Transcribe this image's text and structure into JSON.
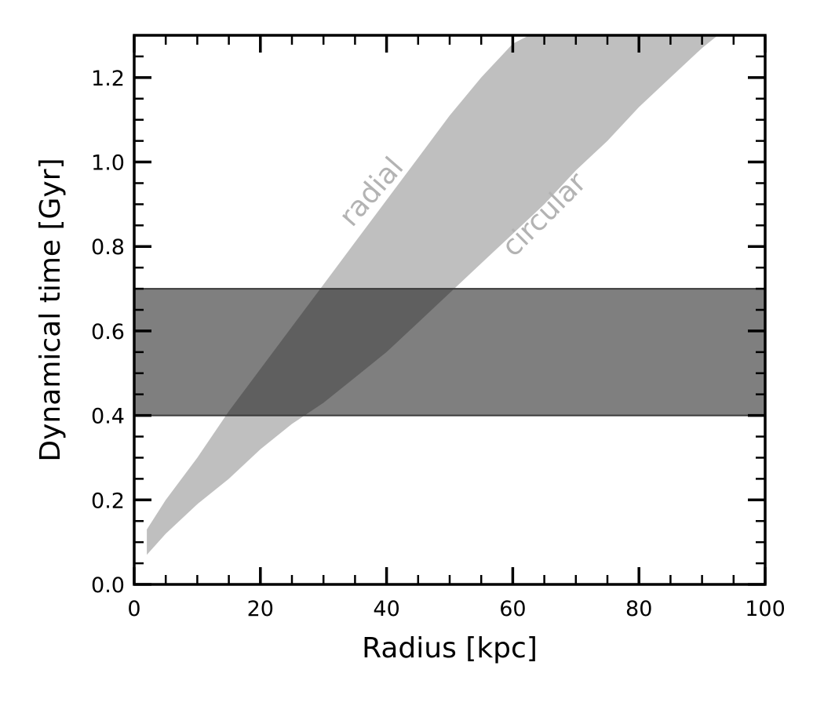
{
  "chart_data": {
    "type": "area",
    "title": "",
    "xlabel": "Radius [kpc]",
    "ylabel": "Dynamical time [Gyr]",
    "xlim": [
      0,
      100
    ],
    "ylim": [
      0,
      1.3
    ],
    "x_major_ticks": [
      0,
      20,
      40,
      60,
      80,
      100
    ],
    "x_tick_labels": [
      "0",
      "20",
      "40",
      "60",
      "80",
      "100"
    ],
    "x_minor_step": 5,
    "y_major_ticks": [
      0.0,
      0.2,
      0.4,
      0.6,
      0.8,
      1.0,
      1.2
    ],
    "y_tick_labels": [
      "0.0",
      "0.2",
      "0.4",
      "0.6",
      "0.8",
      "1.0",
      "1.2"
    ],
    "y_minor_step": 0.05,
    "grid": false,
    "ticks_direction": "in",
    "mirror_ticks": true,
    "bands": {
      "x": [
        2,
        5,
        10,
        15,
        20,
        25,
        30,
        35,
        40,
        45,
        50,
        55,
        60,
        62.6
      ],
      "upper": [
        0.13,
        0.2,
        0.3,
        0.41,
        0.51,
        0.61,
        0.71,
        0.81,
        0.91,
        1.01,
        1.11,
        1.2,
        1.28,
        1.3
      ],
      "x_lower": [
        2,
        5,
        10,
        15,
        20,
        25,
        30,
        35,
        40,
        45,
        50,
        55,
        60,
        65,
        70,
        75,
        80,
        85,
        90,
        92.5
      ],
      "lower": [
        0.07,
        0.12,
        0.19,
        0.25,
        0.32,
        0.38,
        0.43,
        0.49,
        0.55,
        0.62,
        0.69,
        0.76,
        0.83,
        0.9,
        0.98,
        1.05,
        1.13,
        1.2,
        1.27,
        1.3
      ],
      "fill_color": "#bfbfbf"
    },
    "horizontal_band": {
      "ymin": 0.4,
      "ymax": 0.7,
      "color": "#000000",
      "opacity": 0.5
    },
    "annotations": [
      {
        "text": "radial",
        "x": 38.7,
        "y": 0.915,
        "rotation": -49,
        "color": "#b3b3b3"
      },
      {
        "text": "circular",
        "x": 66,
        "y": 0.86,
        "rotation": -45,
        "color": "#b3b3b3"
      }
    ]
  }
}
